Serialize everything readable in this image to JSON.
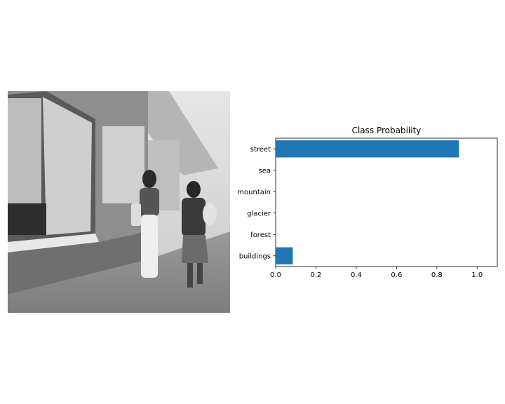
{
  "image_panel": {
    "description_icon": "street-photo-icon"
  },
  "chart_data": {
    "type": "bar",
    "orientation": "horizontal",
    "title": "Class Probability",
    "categories": [
      "buildings",
      "forest",
      "glacier",
      "mountain",
      "sea",
      "street"
    ],
    "values": [
      0.085,
      0.0,
      0.0,
      0.0,
      0.0,
      0.91
    ],
    "xlim": [
      0,
      1.1
    ],
    "xticks": [
      "0.0",
      "0.2",
      "0.4",
      "0.6",
      "0.8",
      "1.0"
    ],
    "xtick_values": [
      0.0,
      0.2,
      0.4,
      0.6,
      0.8,
      1.0
    ],
    "bar_color": "#1f77b4",
    "grid": false
  }
}
